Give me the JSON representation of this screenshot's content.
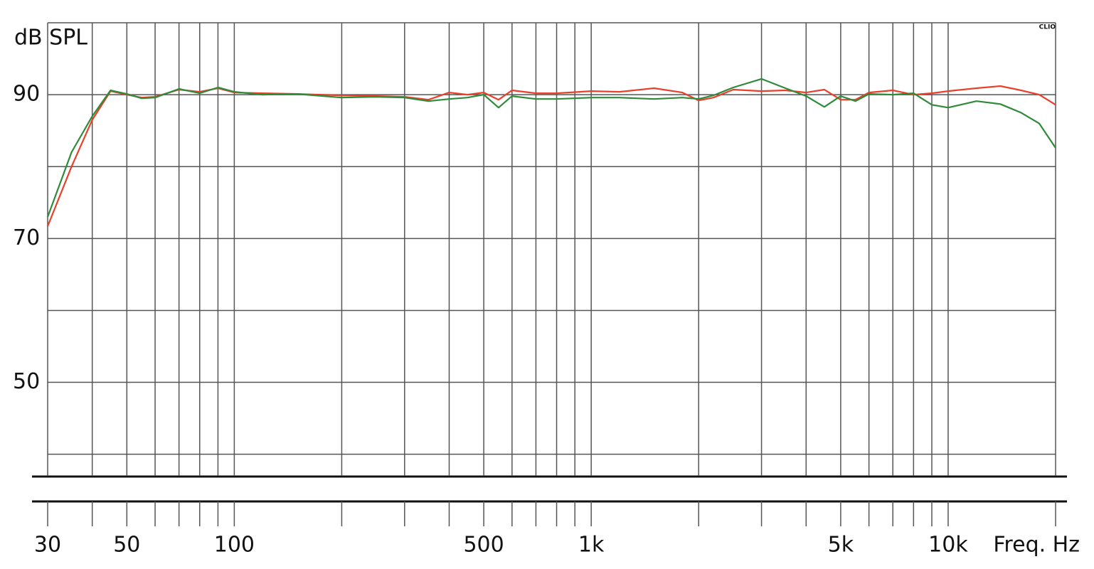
{
  "chart_data": {
    "type": "line",
    "y_label": "dB SPL",
    "x_label": "Freq. Hz",
    "watermark": "CLIO",
    "xscale": "log",
    "xlim": [
      30,
      20000
    ],
    "ylim": [
      37,
      100
    ],
    "xticks": [
      30,
      50,
      100,
      500,
      {
        "value": 1000,
        "label": "1k"
      },
      {
        "value": 5000,
        "label": "5k"
      },
      {
        "value": 10000,
        "label": "10k"
      }
    ],
    "xgrid": [
      30,
      40,
      50,
      60,
      70,
      80,
      90,
      100,
      200,
      300,
      400,
      500,
      600,
      700,
      800,
      900,
      1000,
      2000,
      3000,
      4000,
      5000,
      6000,
      7000,
      8000,
      9000,
      10000,
      20000
    ],
    "yticks": [
      50,
      70,
      90
    ],
    "ygrid": [
      40,
      50,
      60,
      70,
      80,
      90,
      100
    ],
    "x": [
      30,
      35,
      40,
      45,
      50,
      55,
      60,
      70,
      80,
      90,
      100,
      120,
      150,
      200,
      250,
      300,
      350,
      400,
      450,
      500,
      550,
      600,
      700,
      800,
      1000,
      1200,
      1500,
      1800,
      2000,
      2200,
      2500,
      3000,
      3500,
      4000,
      4500,
      5000,
      5500,
      6000,
      7000,
      8000,
      9000,
      10000,
      12000,
      14000,
      16000,
      18000,
      20000
    ],
    "series": [
      {
        "color": "#e8402a",
        "values": [
          71.7,
          80,
          86.5,
          90.5,
          90,
          89.6,
          89.7,
          90.7,
          90.4,
          90.9,
          90.3,
          90.2,
          90.1,
          89.9,
          89.8,
          89.7,
          89.3,
          90.3,
          90,
          90.3,
          89.3,
          90.6,
          90.2,
          90.2,
          90.5,
          90.4,
          90.9,
          90.3,
          89.2,
          89.6,
          90.7,
          90.5,
          90.6,
          90.3,
          90.7,
          89.3,
          89.3,
          90.3,
          90.6,
          90,
          90.2,
          90.5,
          90.9,
          91.2,
          90.6,
          90,
          88.6
        ]
      },
      {
        "color": "#2e8b3a",
        "values": [
          73,
          82,
          87,
          90.6,
          90.1,
          89.5,
          89.6,
          90.8,
          90.2,
          91,
          90.4,
          90,
          90.1,
          89.6,
          89.7,
          89.6,
          89.1,
          89.4,
          89.6,
          90,
          88.2,
          89.8,
          89.4,
          89.4,
          89.6,
          89.6,
          89.4,
          89.6,
          89.4,
          89.9,
          91,
          92.2,
          90.9,
          89.8,
          88.3,
          89.8,
          89.1,
          90.1,
          90,
          90.2,
          88.6,
          88.2,
          89.1,
          88.7,
          87.5,
          86,
          82.6
        ]
      }
    ]
  }
}
